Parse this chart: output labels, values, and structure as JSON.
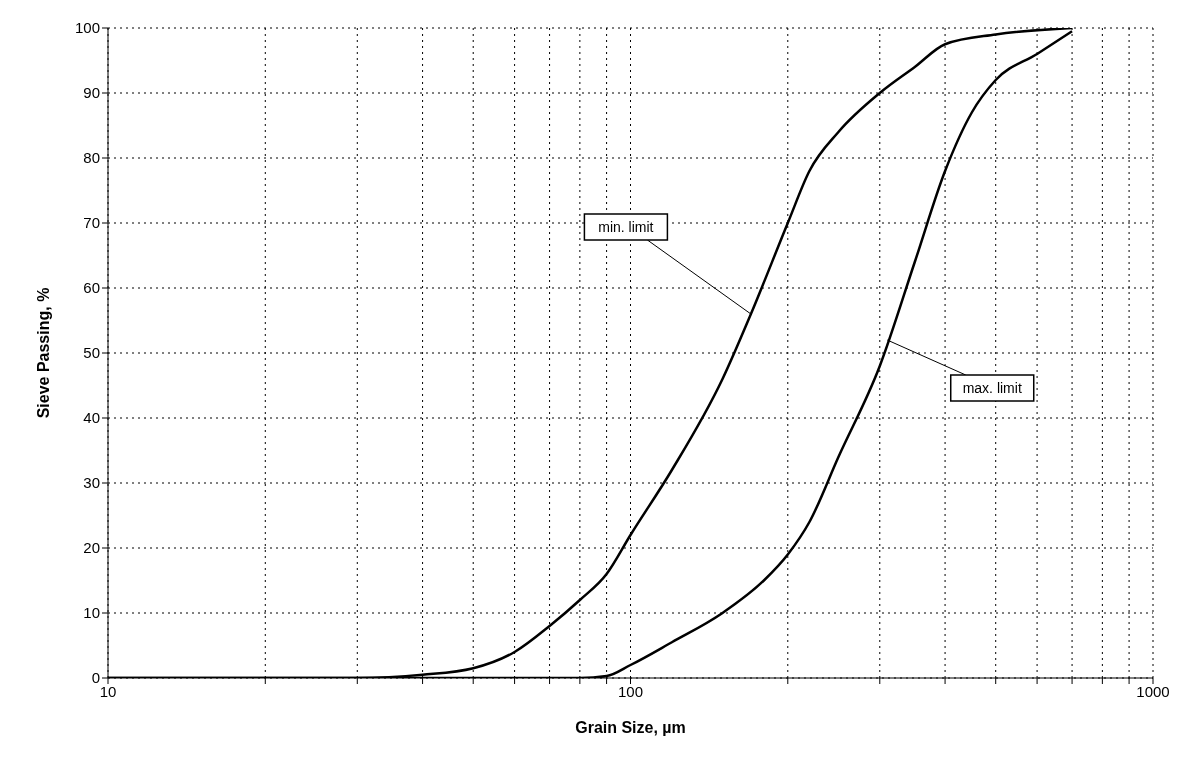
{
  "chart_data": {
    "type": "line",
    "xlabel": "Grain Size, µm",
    "ylabel": "Sieve Passing, %",
    "log": "x",
    "xlim": [
      10,
      1000
    ],
    "xticks": [
      10,
      {
        "value": 20,
        "label": null
      },
      {
        "value": 30,
        "label": null
      },
      {
        "value": 40,
        "label": null
      },
      {
        "value": 50,
        "label": null
      },
      {
        "value": 60,
        "label": null
      },
      {
        "value": 70,
        "label": null
      },
      {
        "value": 80,
        "label": null
      },
      {
        "value": 90,
        "label": null
      },
      100,
      {
        "value": 200,
        "label": null
      },
      {
        "value": 300,
        "label": null
      },
      {
        "value": 400,
        "label": null
      },
      {
        "value": 500,
        "label": null
      },
      {
        "value": 600,
        "label": null
      },
      {
        "value": 700,
        "label": null
      },
      {
        "value": 800,
        "label": null
      },
      {
        "value": 900,
        "label": null
      },
      1000
    ],
    "ylim": [
      0,
      100
    ],
    "yticks": [
      0,
      10,
      20,
      30,
      40,
      50,
      60,
      70,
      80,
      90,
      100
    ],
    "grid": true,
    "marker": "none",
    "line_style": "solid",
    "series": [
      {
        "color": "#000000",
        "x": [
          10,
          30,
          40,
          50,
          60,
          70,
          80,
          90,
          100,
          120,
          150,
          170,
          200,
          220,
          250,
          300,
          350,
          400,
          500,
          700
        ],
        "values": [
          0,
          0,
          0.5,
          1.5,
          4,
          8,
          12,
          16,
          22,
          32,
          46,
          56,
          70,
          78,
          84,
          90,
          94,
          97.5,
          99,
          100
        ]
      },
      {
        "color": "#000000",
        "x": [
          10,
          80,
          90,
          100,
          120,
          150,
          180,
          200,
          220,
          250,
          300,
          350,
          400,
          450,
          500,
          600,
          700
        ],
        "values": [
          0,
          0,
          0.3,
          2,
          5.5,
          10,
          15,
          19,
          24,
          34,
          48,
          64,
          78,
          87,
          92,
          96,
          99.5
        ]
      }
    ],
    "annotations": [
      {
        "text": "min. limit",
        "x": 170,
        "y": 56
      },
      {
        "text": "max. limit",
        "x": 310,
        "y": 52
      }
    ]
  }
}
